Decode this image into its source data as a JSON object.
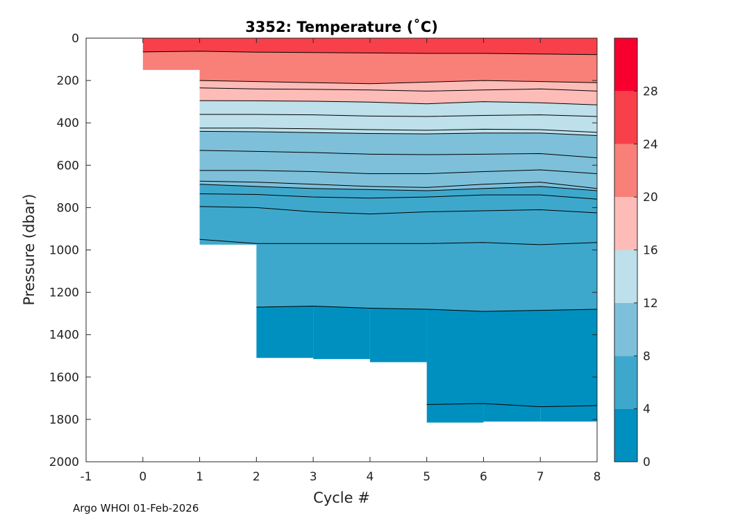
{
  "chart_data": {
    "type": "contourf",
    "title": "3352:  Temperature (˚C)",
    "xlabel": "Cycle #",
    "ylabel": "Pressure (dbar)",
    "xlim": [
      -1,
      8
    ],
    "ylim": [
      0,
      2000
    ],
    "y_reversed": true,
    "xticks": [
      "-1",
      "0",
      "1",
      "2",
      "3",
      "4",
      "5",
      "6",
      "7",
      "8"
    ],
    "yticks": [
      "0",
      "200",
      "400",
      "600",
      "800",
      "1000",
      "1200",
      "1400",
      "1600",
      "1800",
      "2000"
    ],
    "colorbar": {
      "ticks": [
        "0",
        "4",
        "8",
        "12",
        "16",
        "20",
        "24",
        "28"
      ],
      "range": [
        0,
        32
      ],
      "bands": [
        {
          "lo": 0,
          "hi": 4,
          "color": "#0090bf"
        },
        {
          "lo": 4,
          "hi": 8,
          "color": "#3ea8cc"
        },
        {
          "lo": 8,
          "hi": 12,
          "color": "#7ec0da"
        },
        {
          "lo": 12,
          "hi": 16,
          "color": "#bde0ea"
        },
        {
          "lo": 16,
          "hi": 20,
          "color": "#fdbcb8"
        },
        {
          "lo": 20,
          "hi": 24,
          "color": "#f88078"
        },
        {
          "lo": 24,
          "hi": 28,
          "color": "#f8404a"
        },
        {
          "lo": 28,
          "hi": 32,
          "color": "#f8002e"
        }
      ]
    },
    "cycles": [
      0,
      1,
      2,
      3,
      4,
      5,
      6,
      7,
      8
    ],
    "max_pressure_dbar": [
      150,
      975,
      1510,
      1515,
      1530,
      1820,
      1815,
      1810,
      1815
    ],
    "isotherms": [
      {
        "temp": 24,
        "band_above": "#f8404a",
        "pressures": [
          65,
          62,
          66,
          68,
          70,
          72,
          72,
          75,
          78
        ]
      },
      {
        "temp": 20,
        "band_above": "#f88078",
        "pressures": [
          null,
          200,
          205,
          210,
          215,
          208,
          200,
          205,
          210
        ]
      },
      {
        "temp": 18,
        "band_above": "#fdbcb8",
        "pressures": [
          null,
          235,
          240,
          242,
          245,
          250,
          245,
          240,
          250
        ]
      },
      {
        "temp": 16,
        "band_above": "#fdbcb8",
        "pressures": [
          null,
          295,
          296,
          298,
          302,
          310,
          300,
          305,
          315
        ]
      },
      {
        "temp": 15,
        "band_above": "#bde0ea",
        "pressures": [
          null,
          360,
          360,
          362,
          368,
          370,
          365,
          362,
          370
        ]
      },
      {
        "temp": 14,
        "band_above": "#bde0ea",
        "pressures": [
          null,
          425,
          425,
          428,
          432,
          435,
          430,
          432,
          445
        ]
      },
      {
        "temp": 12,
        "band_above": "#bde0ea",
        "pressures": [
          null,
          440,
          442,
          446,
          450,
          452,
          448,
          448,
          460
        ]
      },
      {
        "temp": 11,
        "band_above": "#7ec0da",
        "pressures": [
          null,
          530,
          535,
          540,
          548,
          550,
          548,
          545,
          565
        ]
      },
      {
        "temp": 10,
        "band_above": "#7ec0da",
        "pressures": [
          null,
          625,
          625,
          630,
          640,
          640,
          630,
          622,
          640
        ]
      },
      {
        "temp": 9,
        "band_above": "#7ec0da",
        "pressures": [
          null,
          675,
          680,
          690,
          700,
          705,
          690,
          680,
          710
        ]
      },
      {
        "temp": 8,
        "band_above": "#7ec0da",
        "pressures": [
          null,
          690,
          700,
          710,
          715,
          720,
          710,
          700,
          720
        ]
      },
      {
        "temp": 7,
        "band_above": "#3ea8cc",
        "pressures": [
          null,
          735,
          738,
          750,
          755,
          750,
          740,
          740,
          760
        ]
      },
      {
        "temp": 6,
        "band_above": "#3ea8cc",
        "pressures": [
          null,
          795,
          800,
          820,
          830,
          820,
          815,
          810,
          825
        ]
      },
      {
        "temp": 5,
        "band_above": "#3ea8cc",
        "pressures": [
          null,
          950,
          970,
          970,
          970,
          970,
          965,
          975,
          965
        ]
      },
      {
        "temp": 4,
        "band_above": "#3ea8cc",
        "pressures": [
          null,
          null,
          1270,
          1265,
          1275,
          1280,
          1290,
          1285,
          1280
        ]
      },
      {
        "temp": 3,
        "band_above": "#0090bf",
        "pressures": [
          null,
          null,
          null,
          null,
          null,
          1730,
          1725,
          1740,
          1735
        ]
      }
    ]
  },
  "footer": "Argo WHOI 01-Feb-2026"
}
